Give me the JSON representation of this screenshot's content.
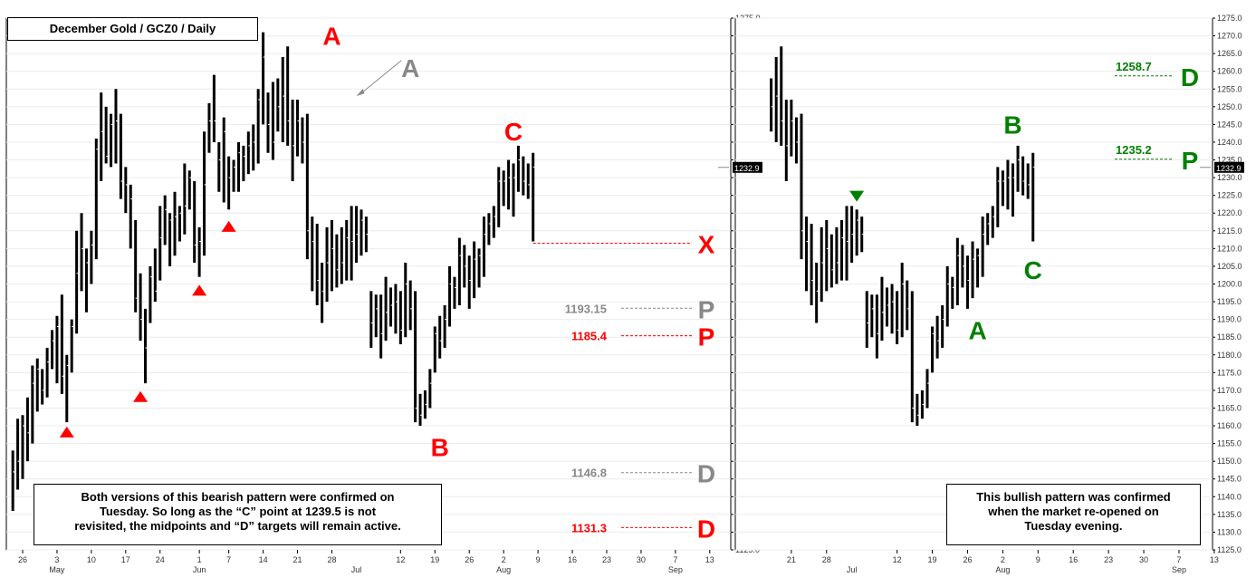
{
  "title": "December Gold  /  GCZ0  /  Daily",
  "notes": {
    "left": [
      "Both versions of this bearish pattern were confirmed on",
      "Tuesday.  So long as the “C” point at 1239.5 is not",
      "revisited, the midpoints and “D” targets will remain active."
    ],
    "right": [
      "This bullish pattern was confirmed",
      "when the market re-opened on",
      "Tuesday evening."
    ]
  },
  "price_tag": "1232.9",
  "colors": {
    "red": "#ff0000",
    "gray": "#888888",
    "green": "#008000",
    "black": "#000000"
  },
  "chart_data": [
    {
      "type": "ohlc",
      "name": "left-panel",
      "ylim": [
        1125,
        1275
      ],
      "y_tick_step": 5,
      "x_ticks": [
        {
          "d": 0,
          "day": "26",
          "month": ""
        },
        {
          "d": 7,
          "day": "3",
          "month": "May"
        },
        {
          "d": 14,
          "day": "10",
          "month": ""
        },
        {
          "d": 21,
          "day": "17",
          "month": ""
        },
        {
          "d": 28,
          "day": "24",
          "month": ""
        },
        {
          "d": 36,
          "day": "1",
          "month": "Jun"
        },
        {
          "d": 42,
          "day": "7",
          "month": ""
        },
        {
          "d": 49,
          "day": "14",
          "month": ""
        },
        {
          "d": 56,
          "day": "21",
          "month": ""
        },
        {
          "d": 63,
          "day": "28",
          "month": ""
        },
        {
          "d": 68,
          "day": "",
          "month": "Jul"
        },
        {
          "d": 77,
          "day": "12",
          "month": ""
        },
        {
          "d": 84,
          "day": "19",
          "month": ""
        },
        {
          "d": 91,
          "day": "26",
          "month": ""
        },
        {
          "d": 98,
          "day": "2",
          "month": "Aug"
        },
        {
          "d": 105,
          "day": "9",
          "month": ""
        },
        {
          "d": 112,
          "day": "16",
          "month": ""
        },
        {
          "d": 119,
          "day": "23",
          "month": ""
        },
        {
          "d": 126,
          "day": "30",
          "month": ""
        },
        {
          "d": 133,
          "day": "7",
          "month": ""
        },
        {
          "d": 133,
          "day": "",
          "month": "Sep"
        },
        {
          "d": 140,
          "day": "13",
          "month": ""
        }
      ],
      "bars": [
        {
          "d": -2,
          "h": 1153,
          "l": 1136,
          "c": 1147
        },
        {
          "d": -1,
          "h": 1162,
          "l": 1142,
          "c": 1150
        },
        {
          "d": 0,
          "h": 1163,
          "l": 1145,
          "c": 1160
        },
        {
          "d": 1,
          "h": 1168,
          "l": 1150,
          "c": 1158
        },
        {
          "d": 2,
          "h": 1177,
          "l": 1155,
          "c": 1172
        },
        {
          "d": 3,
          "h": 1179,
          "l": 1164,
          "c": 1176
        },
        {
          "d": 4,
          "h": 1176,
          "l": 1166,
          "c": 1170
        },
        {
          "d": 5,
          "h": 1182,
          "l": 1168,
          "c": 1178
        },
        {
          "d": 6,
          "h": 1187,
          "l": 1176,
          "c": 1184
        },
        {
          "d": 7,
          "h": 1191,
          "l": 1172,
          "c": 1188
        },
        {
          "d": 8,
          "h": 1197,
          "l": 1169,
          "c": 1174
        },
        {
          "d": 9,
          "h": 1180,
          "l": 1161,
          "c": 1177
        },
        {
          "d": 10,
          "h": 1190,
          "l": 1175,
          "c": 1188
        },
        {
          "d": 11,
          "h": 1215,
          "l": 1186,
          "c": 1203
        },
        {
          "d": 12,
          "h": 1220,
          "l": 1198,
          "c": 1210
        },
        {
          "d": 13,
          "h": 1210,
          "l": 1192,
          "c": 1206
        },
        {
          "d": 14,
          "h": 1215,
          "l": 1200,
          "c": 1211
        },
        {
          "d": 15,
          "h": 1241,
          "l": 1207,
          "c": 1238
        },
        {
          "d": 16,
          "h": 1254,
          "l": 1229,
          "c": 1243
        },
        {
          "d": 17,
          "h": 1250,
          "l": 1234,
          "c": 1236
        },
        {
          "d": 18,
          "h": 1248,
          "l": 1233,
          "c": 1245
        },
        {
          "d": 19,
          "h": 1255,
          "l": 1234,
          "c": 1246
        },
        {
          "d": 20,
          "h": 1248,
          "l": 1224,
          "c": 1229
        },
        {
          "d": 21,
          "h": 1233,
          "l": 1220,
          "c": 1228
        },
        {
          "d": 22,
          "h": 1228,
          "l": 1210,
          "c": 1224
        },
        {
          "d": 23,
          "h": 1218,
          "l": 1192,
          "c": 1196
        },
        {
          "d": 24,
          "h": 1203,
          "l": 1184,
          "c": 1190
        },
        {
          "d": 25,
          "h": 1193,
          "l": 1172,
          "c": 1182
        },
        {
          "d": 26,
          "h": 1205,
          "l": 1189,
          "c": 1202
        },
        {
          "d": 27,
          "h": 1210,
          "l": 1195,
          "c": 1198
        },
        {
          "d": 28,
          "h": 1222,
          "l": 1201,
          "c": 1213
        },
        {
          "d": 29,
          "h": 1225,
          "l": 1211,
          "c": 1221
        },
        {
          "d": 30,
          "h": 1220,
          "l": 1205,
          "c": 1218
        },
        {
          "d": 31,
          "h": 1226,
          "l": 1208,
          "c": 1219
        },
        {
          "d": 32,
          "h": 1222,
          "l": 1212,
          "c": 1220
        },
        {
          "d": 33,
          "h": 1234,
          "l": 1214,
          "c": 1222
        },
        {
          "d": 34,
          "h": 1232,
          "l": 1221,
          "c": 1230
        },
        {
          "d": 35,
          "h": 1229,
          "l": 1206,
          "c": 1211
        },
        {
          "d": 36,
          "h": 1216,
          "l": 1202,
          "c": 1212
        },
        {
          "d": 37,
          "h": 1243,
          "l": 1208,
          "c": 1228
        },
        {
          "d": 38,
          "h": 1251,
          "l": 1237,
          "c": 1246
        },
        {
          "d": 39,
          "h": 1259,
          "l": 1240,
          "c": 1246
        },
        {
          "d": 40,
          "h": 1240,
          "l": 1226,
          "c": 1235
        },
        {
          "d": 41,
          "h": 1247,
          "l": 1223,
          "c": 1243
        },
        {
          "d": 42,
          "h": 1236,
          "l": 1221,
          "c": 1230
        },
        {
          "d": 43,
          "h": 1235,
          "l": 1226,
          "c": 1233
        },
        {
          "d": 44,
          "h": 1240,
          "l": 1226,
          "c": 1237
        },
        {
          "d": 45,
          "h": 1239,
          "l": 1229,
          "c": 1236
        },
        {
          "d": 46,
          "h": 1243,
          "l": 1231,
          "c": 1239
        },
        {
          "d": 47,
          "h": 1245,
          "l": 1232,
          "c": 1240
        },
        {
          "d": 48,
          "h": 1255,
          "l": 1234,
          "c": 1252
        },
        {
          "d": 49,
          "h": 1271,
          "l": 1245,
          "c": 1264
        },
        {
          "d": 50,
          "h": 1254,
          "l": 1237,
          "c": 1245
        },
        {
          "d": 51,
          "h": 1257,
          "l": 1235,
          "c": 1240
        },
        {
          "d": 52,
          "h": 1258,
          "l": 1243,
          "c": 1250
        },
        {
          "d": 53,
          "h": 1264,
          "l": 1240,
          "c": 1253
        },
        {
          "d": 54,
          "h": 1267,
          "l": 1239,
          "c": 1246
        },
        {
          "d": 55,
          "h": 1252,
          "l": 1229,
          "c": 1239
        },
        {
          "d": 56,
          "h": 1252,
          "l": 1236,
          "c": 1246
        },
        {
          "d": 57,
          "h": 1247,
          "l": 1234,
          "c": 1240
        },
        {
          "d": 58,
          "h": 1248,
          "l": 1207,
          "c": 1215
        },
        {
          "d": 59,
          "h": 1219,
          "l": 1198,
          "c": 1212
        },
        {
          "d": 60,
          "h": 1217,
          "l": 1194,
          "c": 1201
        },
        {
          "d": 61,
          "h": 1206,
          "l": 1189,
          "c": 1198
        },
        {
          "d": 62,
          "h": 1216,
          "l": 1195,
          "c": 1206
        },
        {
          "d": 63,
          "h": 1218,
          "l": 1198,
          "c": 1210
        },
        {
          "d": 64,
          "h": 1214,
          "l": 1199,
          "c": 1204
        },
        {
          "d": 65,
          "h": 1216,
          "l": 1200,
          "c": 1206
        },
        {
          "d": 66,
          "h": 1218,
          "l": 1201,
          "c": 1213
        },
        {
          "d": 67,
          "h": 1222,
          "l": 1201,
          "c": 1212
        },
        {
          "d": 68,
          "h": 1222,
          "l": 1206,
          "c": 1214
        },
        {
          "d": 69,
          "h": 1221,
          "l": 1208,
          "c": 1218
        },
        {
          "d": 70,
          "h": 1219,
          "l": 1209,
          "c": 1214
        },
        {
          "d": 71,
          "h": 1198,
          "l": 1182,
          "c": 1189
        },
        {
          "d": 72,
          "h": 1197,
          "l": 1185,
          "c": 1193
        },
        {
          "d": 73,
          "h": 1197,
          "l": 1179,
          "c": 1186
        },
        {
          "d": 74,
          "h": 1202,
          "l": 1184,
          "c": 1192
        },
        {
          "d": 75,
          "h": 1199,
          "l": 1188,
          "c": 1194
        },
        {
          "d": 76,
          "h": 1200,
          "l": 1186,
          "c": 1195
        },
        {
          "d": 77,
          "h": 1198,
          "l": 1183,
          "c": 1187
        },
        {
          "d": 78,
          "h": 1206,
          "l": 1185,
          "c": 1200
        },
        {
          "d": 79,
          "h": 1201,
          "l": 1187,
          "c": 1193
        },
        {
          "d": 80,
          "h": 1198,
          "l": 1161,
          "c": 1165
        },
        {
          "d": 81,
          "h": 1169,
          "l": 1160,
          "c": 1163
        },
        {
          "d": 82,
          "h": 1170,
          "l": 1162,
          "c": 1166
        },
        {
          "d": 83,
          "h": 1176,
          "l": 1165,
          "c": 1172
        },
        {
          "d": 84,
          "h": 1188,
          "l": 1175,
          "c": 1186
        },
        {
          "d": 85,
          "h": 1191,
          "l": 1179,
          "c": 1184
        },
        {
          "d": 86,
          "h": 1194,
          "l": 1182,
          "c": 1190
        },
        {
          "d": 87,
          "h": 1205,
          "l": 1188,
          "c": 1200
        },
        {
          "d": 88,
          "h": 1202,
          "l": 1193,
          "c": 1199
        },
        {
          "d": 89,
          "h": 1213,
          "l": 1194,
          "c": 1208
        },
        {
          "d": 90,
          "h": 1211,
          "l": 1199,
          "c": 1205
        },
        {
          "d": 91,
          "h": 1208,
          "l": 1193,
          "c": 1201
        },
        {
          "d": 92,
          "h": 1212,
          "l": 1196,
          "c": 1207
        },
        {
          "d": 93,
          "h": 1210,
          "l": 1199,
          "c": 1208
        },
        {
          "d": 94,
          "h": 1219,
          "l": 1202,
          "c": 1214
        },
        {
          "d": 95,
          "h": 1220,
          "l": 1211,
          "c": 1217
        },
        {
          "d": 96,
          "h": 1222,
          "l": 1213,
          "c": 1219
        },
        {
          "d": 97,
          "h": 1233,
          "l": 1216,
          "c": 1229
        },
        {
          "d": 98,
          "h": 1232,
          "l": 1222,
          "c": 1229
        },
        {
          "d": 99,
          "h": 1235,
          "l": 1221,
          "c": 1230
        },
        {
          "d": 100,
          "h": 1234,
          "l": 1219,
          "c": 1230
        },
        {
          "d": 101,
          "h": 1239,
          "l": 1226,
          "c": 1235
        },
        {
          "d": 102,
          "h": 1236,
          "l": 1225,
          "c": 1229
        },
        {
          "d": 103,
          "h": 1234,
          "l": 1224,
          "c": 1228
        },
        {
          "d": 104,
          "h": 1237,
          "l": 1212,
          "c": 1233
        }
      ],
      "annotations": [
        {
          "label": "A",
          "color": "red",
          "d": 63,
          "p": 1270
        },
        {
          "label": "A",
          "color": "gray",
          "d": 79,
          "p": 1261,
          "arrow_to": [
            68,
            1253
          ]
        },
        {
          "label": "C",
          "color": "red",
          "d": 100,
          "p": 1243
        },
        {
          "label": "B",
          "color": "red",
          "d": 85,
          "p": 1154
        }
      ],
      "up_triangles": [
        {
          "d": 9,
          "p": 1158
        },
        {
          "d": 24,
          "p": 1168
        },
        {
          "d": 36,
          "p": 1198
        },
        {
          "d": 42,
          "p": 1216
        }
      ],
      "levels": [
        {
          "value": "",
          "p": 1211.5,
          "label": "X",
          "color": "red",
          "from_d": 104
        },
        {
          "value": "1193.15",
          "p": 1193.15,
          "label": "P",
          "color": "gray"
        },
        {
          "value": "1185.4",
          "p": 1185.4,
          "label": "P",
          "color": "red"
        },
        {
          "value": "1146.8",
          "p": 1146.8,
          "label": "D",
          "color": "gray"
        },
        {
          "value": "1131.3",
          "p": 1131.3,
          "label": "D",
          "color": "red"
        }
      ]
    },
    {
      "type": "ohlc",
      "name": "right-panel",
      "ylim": [
        1125,
        1275
      ],
      "y_tick_step": 5,
      "x_ticks": [
        {
          "d": 56,
          "day": "21",
          "month": ""
        },
        {
          "d": 63,
          "day": "28",
          "month": ""
        },
        {
          "d": 68,
          "day": "",
          "month": "Jul"
        },
        {
          "d": 77,
          "day": "12",
          "month": ""
        },
        {
          "d": 84,
          "day": "19",
          "month": ""
        },
        {
          "d": 91,
          "day": "26",
          "month": ""
        },
        {
          "d": 98,
          "day": "2",
          "month": "Aug"
        },
        {
          "d": 105,
          "day": "9",
          "month": ""
        },
        {
          "d": 112,
          "day": "16",
          "month": ""
        },
        {
          "d": 119,
          "day": "23",
          "month": ""
        },
        {
          "d": 126,
          "day": "30",
          "month": ""
        },
        {
          "d": 133,
          "day": "7",
          "month": ""
        },
        {
          "d": 133,
          "day": "",
          "month": "Sep"
        },
        {
          "d": 140,
          "day": "13",
          "month": ""
        }
      ],
      "first_bar": 52,
      "annotations": [
        {
          "label": "B",
          "color": "green",
          "d": 100,
          "p": 1245
        },
        {
          "label": "A",
          "color": "green",
          "d": 93,
          "p": 1187
        },
        {
          "label": "C",
          "color": "green",
          "d": 104,
          "p": 1204
        }
      ],
      "down_triangles": [
        {
          "d": 69,
          "p": 1225
        }
      ],
      "levels": [
        {
          "value": "1258.7",
          "p": 1258.7,
          "label": "D",
          "color": "green"
        },
        {
          "value": "1235.2",
          "p": 1235.2,
          "label": "P",
          "color": "green"
        }
      ]
    }
  ]
}
